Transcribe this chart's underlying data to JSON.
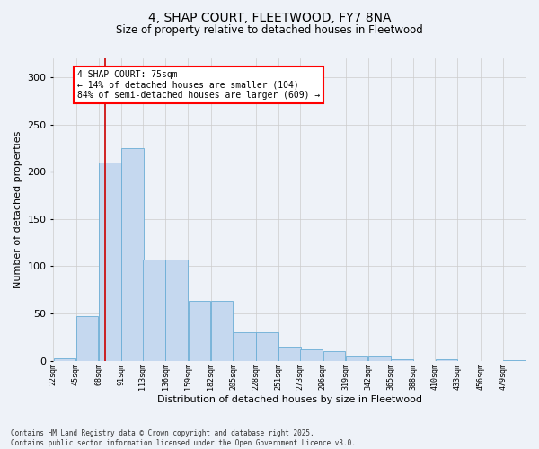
{
  "title_line1": "4, SHAP COURT, FLEETWOOD, FY7 8NA",
  "title_line2": "Size of property relative to detached houses in Fleetwood",
  "xlabel": "Distribution of detached houses by size in Fleetwood",
  "ylabel": "Number of detached properties",
  "bar_color": "#c5d8ef",
  "bar_edge_color": "#6baed6",
  "grid_color": "#cccccc",
  "background_color": "#eef2f8",
  "vline_x": 75,
  "vline_color": "#cc0000",
  "annotation_text": "4 SHAP COURT: 75sqm\n← 14% of detached houses are smaller (104)\n84% of semi-detached houses are larger (609) →",
  "bin_starts": [
    22,
    45,
    68,
    91,
    113,
    136,
    159,
    182,
    205,
    228,
    251,
    273,
    296,
    319,
    342,
    365,
    388,
    410,
    433,
    456,
    479
  ],
  "bin_width": 23,
  "bin_labels": [
    "22sqm",
    "45sqm",
    "68sqm",
    "91sqm",
    "113sqm",
    "136sqm",
    "159sqm",
    "182sqm",
    "205sqm",
    "228sqm",
    "251sqm",
    "273sqm",
    "296sqm",
    "319sqm",
    "342sqm",
    "365sqm",
    "388sqm",
    "410sqm",
    "433sqm",
    "456sqm",
    "479sqm"
  ],
  "bar_heights": [
    3,
    47,
    210,
    225,
    107,
    107,
    63,
    63,
    30,
    30,
    15,
    12,
    10,
    5,
    5,
    2,
    0,
    2,
    0,
    0,
    1
  ],
  "ylim": [
    0,
    320
  ],
  "yticks": [
    0,
    50,
    100,
    150,
    200,
    250,
    300
  ],
  "footnote": "Contains HM Land Registry data © Crown copyright and database right 2025.\nContains public sector information licensed under the Open Government Licence v3.0."
}
